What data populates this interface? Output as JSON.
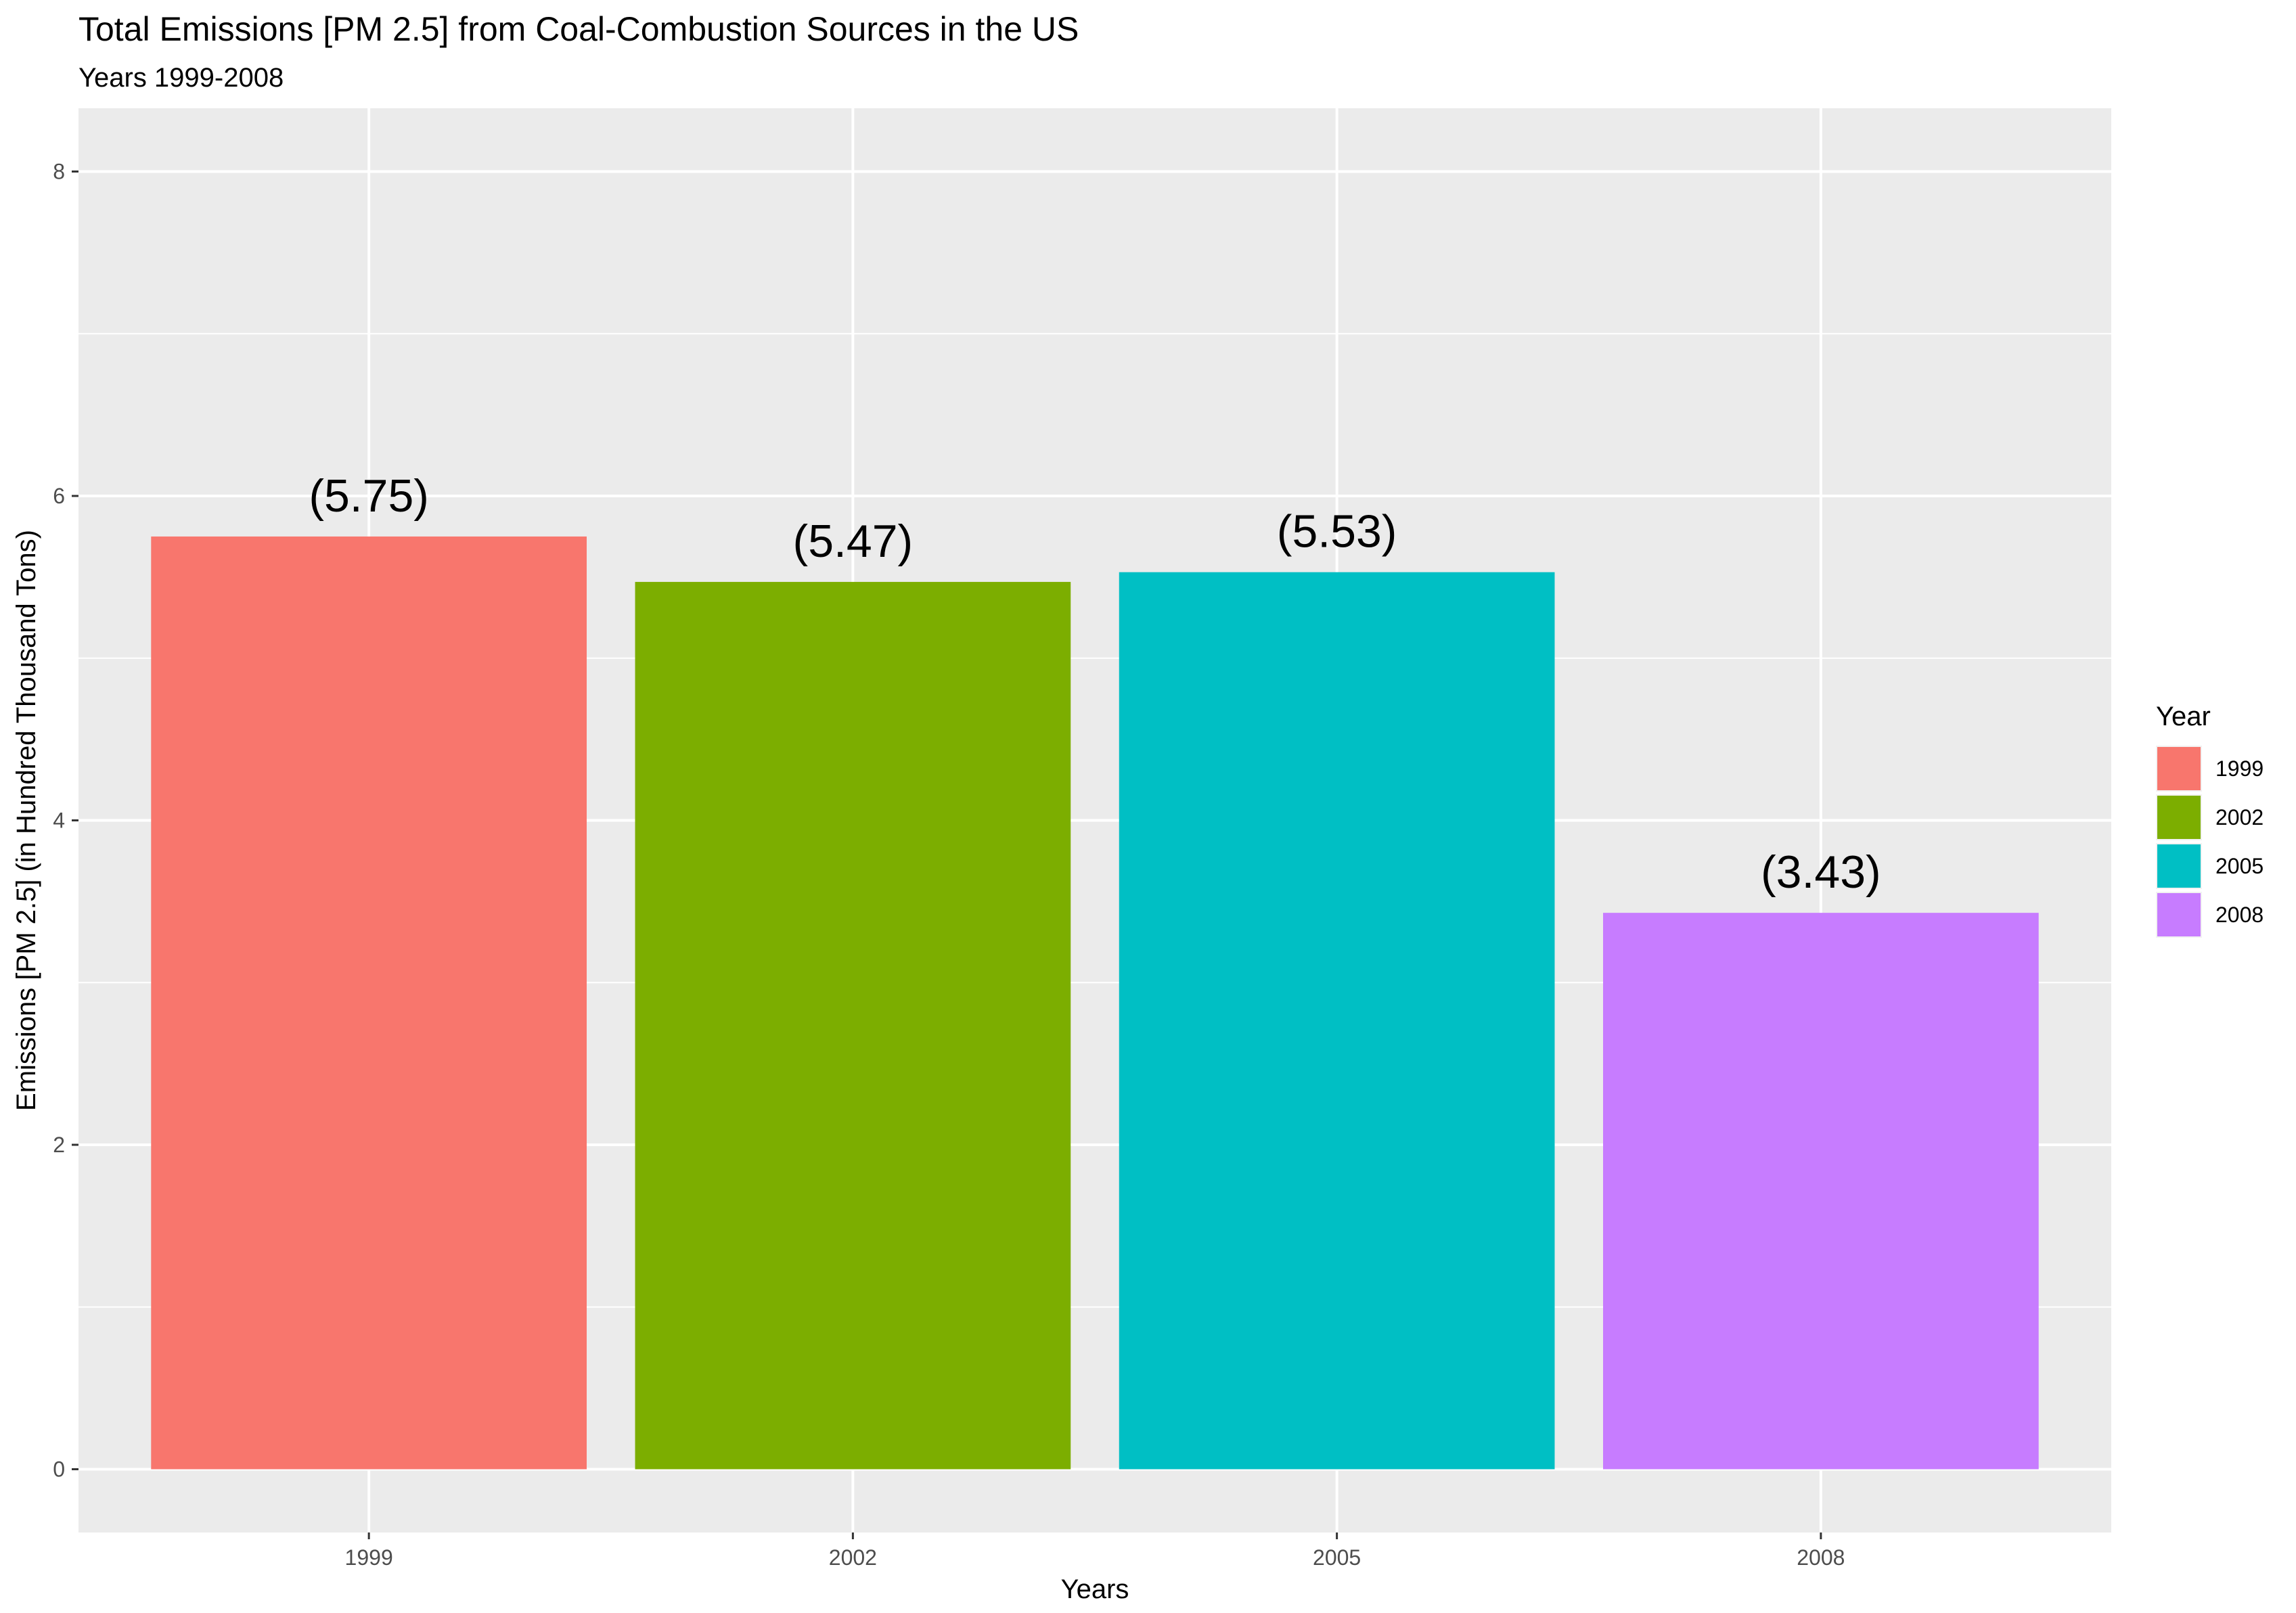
{
  "chart_data": {
    "type": "bar",
    "title": "Total Emissions [PM 2.5] from Coal-Combustion Sources in the US",
    "subtitle": "Years 1999-2008",
    "xlabel": "Years",
    "ylabel": "Emissions [PM 2.5] (in Hundred Thousand Tons)",
    "categories": [
      "1999",
      "2002",
      "2005",
      "2008"
    ],
    "values": [
      5.75,
      5.47,
      5.53,
      3.43
    ],
    "data_labels": [
      "(5.75)",
      "(5.47)",
      "(5.53)",
      "(3.43)"
    ],
    "ylim": [
      -0.39,
      8.39
    ],
    "yticks": [
      0,
      2,
      4,
      6,
      8
    ],
    "grid": true,
    "legend": {
      "title": "Year",
      "placement": "right",
      "entries": [
        "1999",
        "2002",
        "2005",
        "2008"
      ]
    },
    "colors": [
      "#F8766D",
      "#7CAE00",
      "#00BFC4",
      "#C77CFF"
    ],
    "panel_background": "#EBEBEB",
    "grid_color": "#FFFFFF"
  }
}
